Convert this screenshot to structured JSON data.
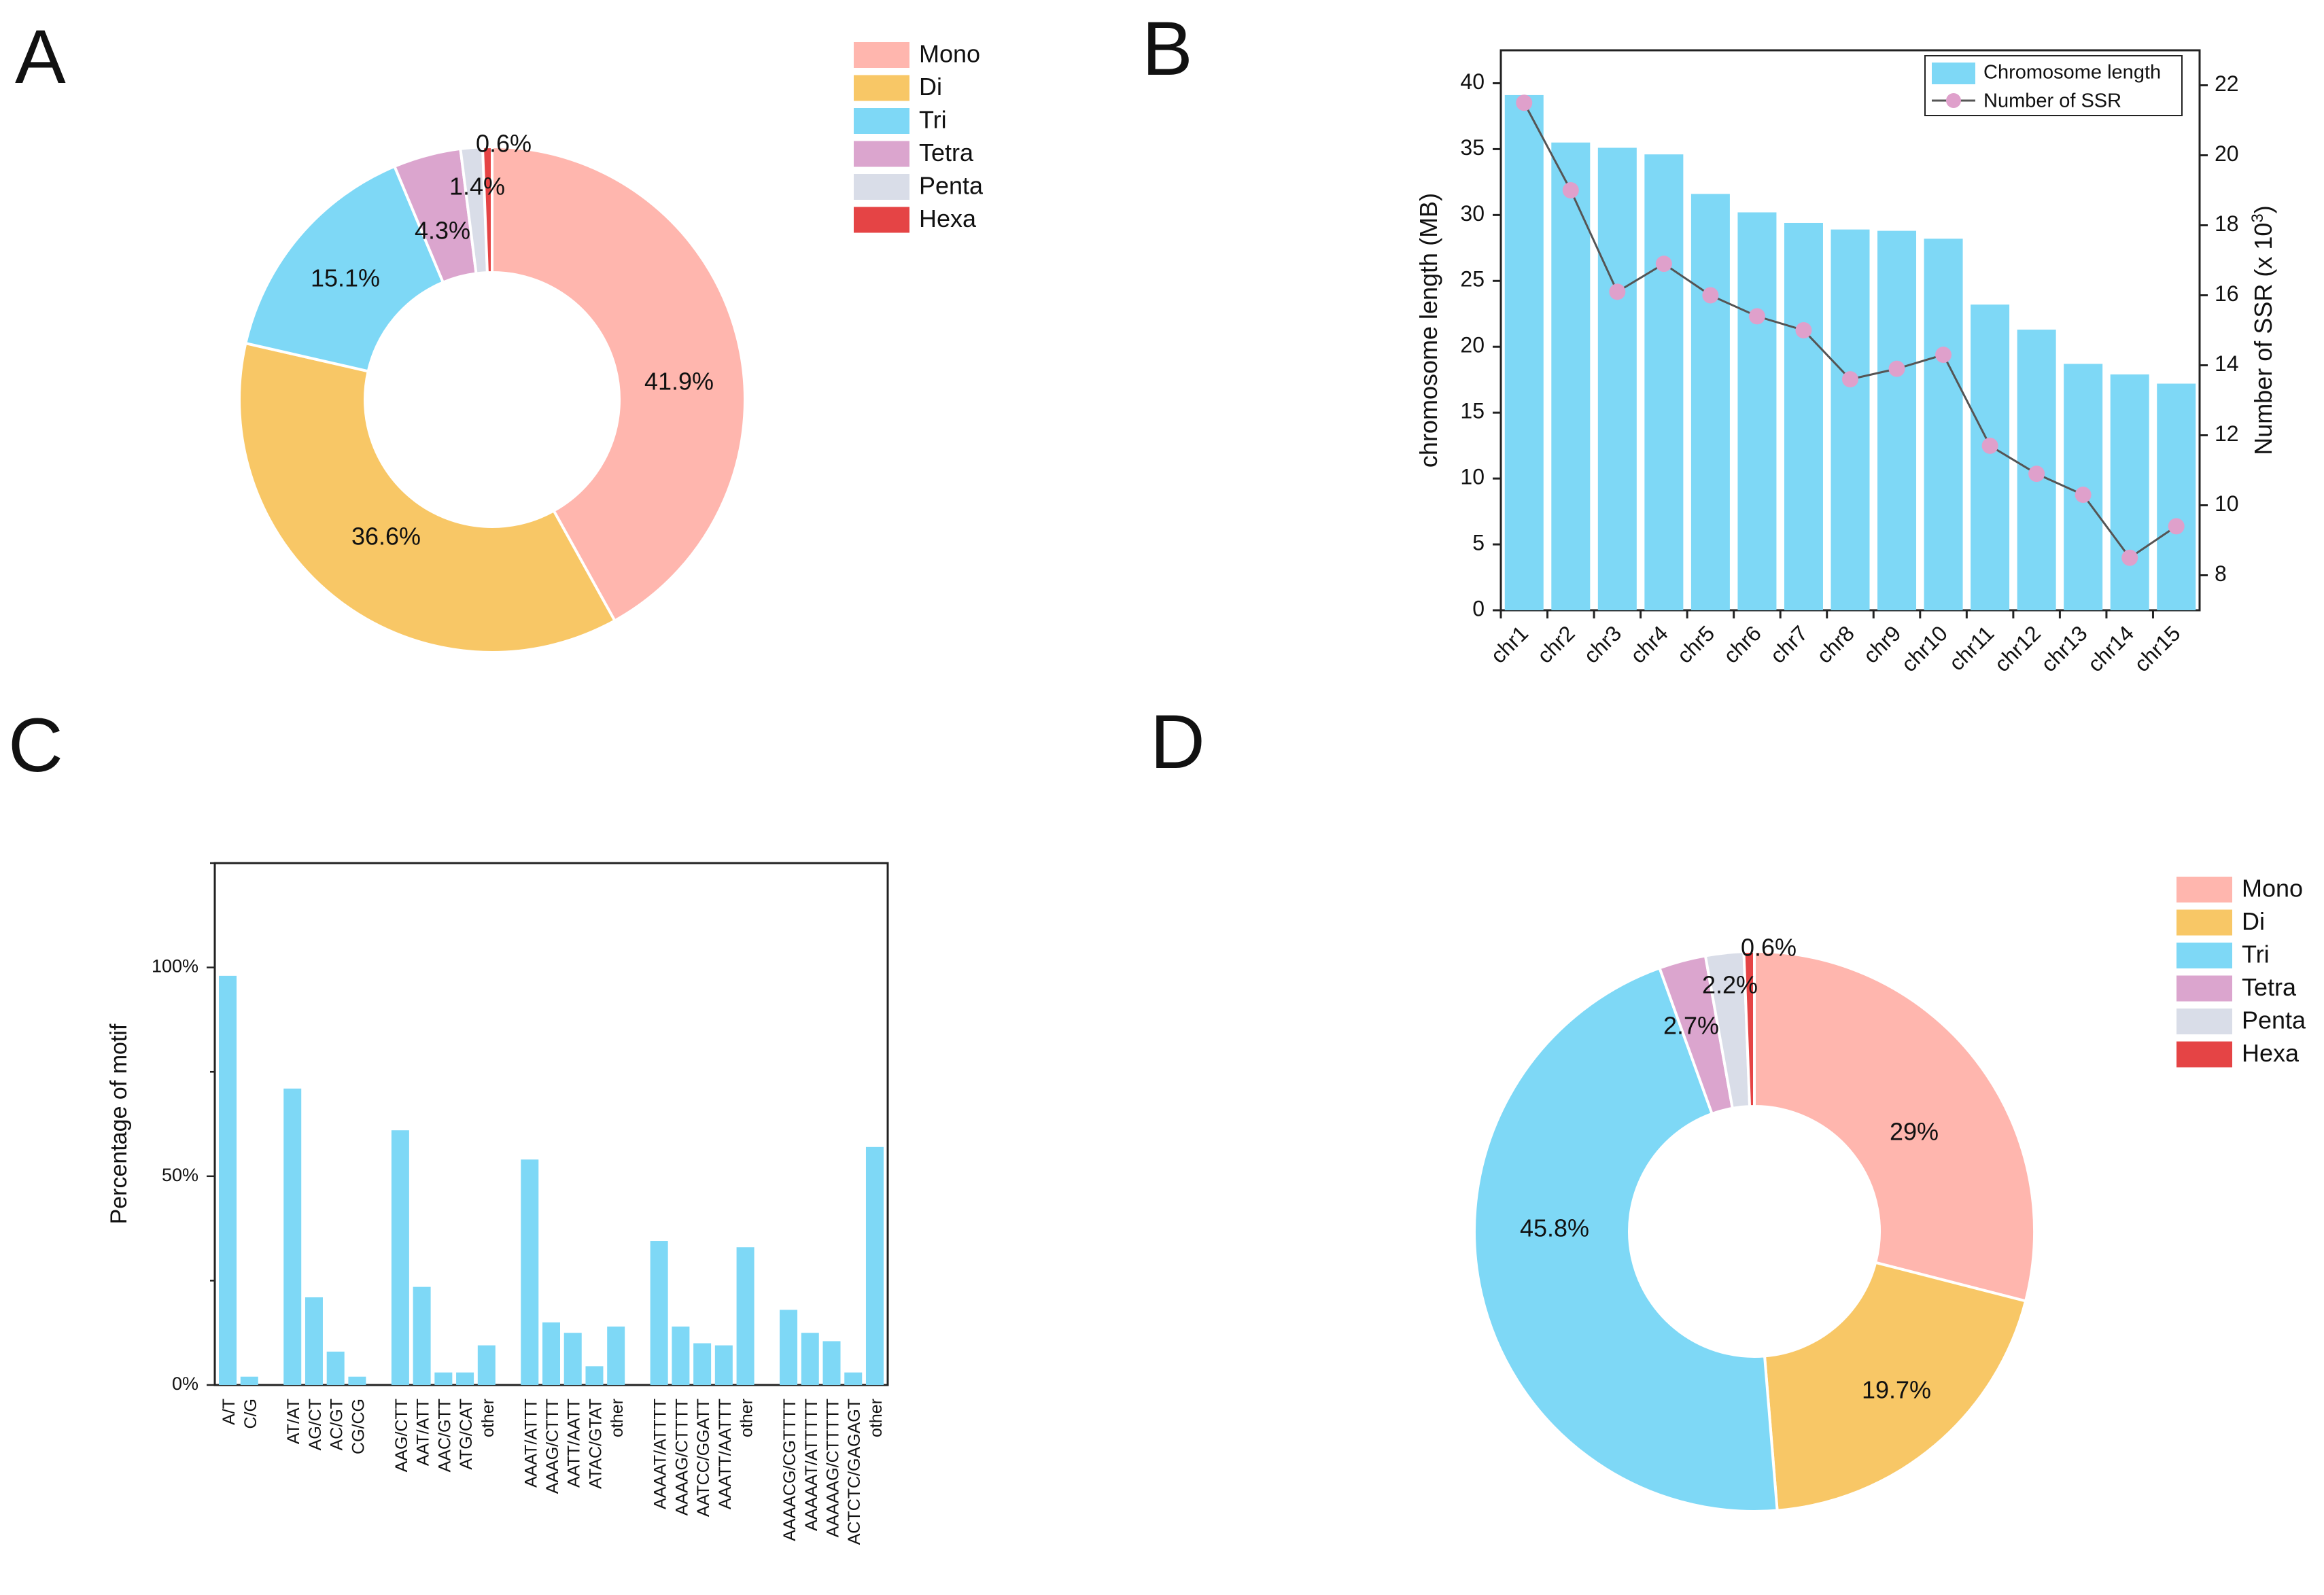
{
  "colors": {
    "mono": "#FFB6AE",
    "di": "#F8C766",
    "tri": "#7ED8F6",
    "tetra": "#DBA5CE",
    "penta": "#D9DDE8",
    "hexa": "#E54445",
    "bar": "#7ED8F6",
    "line": "#555555",
    "marker": "#DFA0CB"
  },
  "chart_data": [
    {
      "panel": "A",
      "type": "pie",
      "donut": true,
      "categories": [
        "Mono",
        "Di",
        "Tri",
        "Tetra",
        "Penta",
        "Hexa"
      ],
      "values": [
        41.9,
        36.6,
        15.1,
        4.3,
        1.4,
        0.6
      ],
      "labels": [
        "41.9%",
        "36.6%",
        "15.1%",
        "4.3%",
        "1.4%",
        "0.6%"
      ],
      "legend": "top-right"
    },
    {
      "panel": "B",
      "type": "bar",
      "categories": [
        "chr1",
        "chr2",
        "chr3",
        "chr4",
        "chr5",
        "chr6",
        "chr7",
        "chr8",
        "chr9",
        "chr10",
        "chr11",
        "chr12",
        "chr13",
        "chr14",
        "chr15"
      ],
      "series": [
        {
          "name": "Chromosome length",
          "type": "bar",
          "axis": "left",
          "values": [
            39.1,
            35.5,
            35.1,
            34.6,
            31.6,
            30.2,
            29.4,
            28.9,
            28.8,
            28.2,
            23.2,
            21.3,
            18.7,
            17.9,
            17.2
          ]
        },
        {
          "name": "Number of SSR",
          "type": "line",
          "axis": "right",
          "values": [
            21.5,
            19.0,
            16.1,
            16.9,
            16.0,
            15.4,
            15.0,
            13.6,
            13.9,
            14.3,
            11.7,
            10.9,
            10.3,
            8.5,
            9.4
          ]
        }
      ],
      "ylabel": "chromosome length (MB)",
      "ylabel_right": "Number of SSR (x 10",
      "ylabel_right_sup": "3",
      "ylabel_right_close": ")",
      "ylim": [
        0,
        42.5
      ],
      "ylim_right": [
        7,
        23
      ],
      "yticks": [
        0,
        5,
        10,
        15,
        20,
        25,
        30,
        35,
        40
      ],
      "yticks_right": [
        8,
        10,
        12,
        14,
        16,
        18,
        20,
        22
      ],
      "legend": "top-right"
    },
    {
      "panel": "C",
      "type": "bar",
      "groups": [
        {
          "categories": [
            "A/T",
            "C/G"
          ],
          "values": [
            98,
            2
          ]
        },
        {
          "categories": [
            "AT/AT",
            "AG/CT",
            "AC/GT",
            "CG/CG"
          ],
          "values": [
            71,
            21,
            8,
            2
          ]
        },
        {
          "categories": [
            "AAG/CTT",
            "AAT/ATT",
            "AAC/GTT",
            "ATG/CAT",
            "other"
          ],
          "values": [
            61,
            23.5,
            3,
            3,
            9.5
          ]
        },
        {
          "categories": [
            "AAAT/ATTT",
            "AAAG/CTTT",
            "AATT/AATT",
            "ATAC/GTAT",
            "other"
          ],
          "values": [
            54,
            15,
            12.5,
            4.5,
            14
          ]
        },
        {
          "categories": [
            "AAAAT/ATTTT",
            "AAAAG/CTTTT",
            "AATCC/GGATT",
            "AAATT/AATTT",
            "other"
          ],
          "values": [
            34.5,
            14,
            10,
            9.5,
            33
          ]
        },
        {
          "categories": [
            "AAAACG/CGTTTT",
            "AAAAAT/ATTTTT",
            "AAAAAG/CTTTTT",
            "ACTCTC/GAGAGT",
            "other"
          ],
          "values": [
            18,
            12.5,
            10.5,
            3,
            57
          ]
        }
      ],
      "ylabel": "Percentage of motif",
      "ylim": [
        0,
        125
      ],
      "yticks": [
        0,
        50,
        100
      ],
      "ytick_labels": [
        "0%",
        "50%",
        "100%"
      ]
    },
    {
      "panel": "D",
      "type": "pie",
      "donut": true,
      "categories": [
        "Mono",
        "Di",
        "Tri",
        "Tetra",
        "Penta",
        "Hexa"
      ],
      "values": [
        29,
        19.7,
        45.8,
        2.7,
        2.2,
        0.6
      ],
      "labels": [
        "29%",
        "19.7%",
        "45.8%",
        "2.7%",
        "2.2%",
        "0.6%"
      ],
      "legend": "top-right"
    }
  ],
  "panel_letters": [
    "A",
    "B",
    "C",
    "D"
  ]
}
